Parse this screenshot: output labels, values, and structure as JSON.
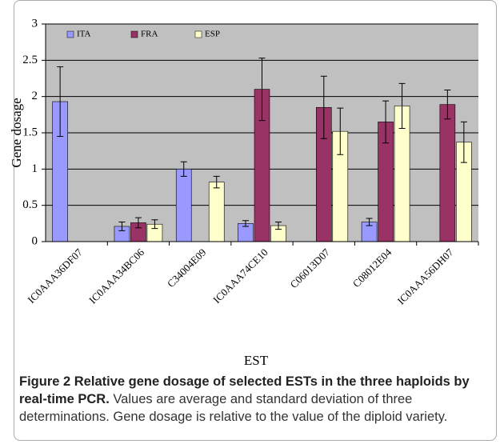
{
  "chart_data": {
    "type": "bar",
    "y_label": "Gene dosage",
    "x_label": "EST",
    "categories": [
      "IC0AAA36DF07",
      "IC0AAA34BC06",
      "C34004E09",
      "IC0AAA74CE10",
      "C06013D07",
      "C08012E04",
      "IC0AAA56DH07"
    ],
    "series": [
      {
        "name": "ITA",
        "color": "#9999ff",
        "values": [
          1.93,
          0.21,
          1.0,
          0.25,
          null,
          0.27,
          null
        ],
        "errors": [
          0.48,
          0.06,
          0.1,
          0.04,
          null,
          0.05,
          null
        ]
      },
      {
        "name": "FRA",
        "color": "#993366",
        "values": [
          null,
          0.26,
          null,
          2.1,
          1.85,
          1.65,
          1.89
        ],
        "errors": [
          null,
          0.07,
          null,
          0.43,
          0.43,
          0.29,
          0.2
        ]
      },
      {
        "name": "ESP",
        "color": "#ffffcc",
        "values": [
          null,
          0.24,
          0.82,
          0.22,
          1.52,
          1.87,
          1.37
        ],
        "errors": [
          null,
          0.06,
          0.08,
          0.05,
          0.32,
          0.31,
          0.28
        ]
      }
    ],
    "ylim": [
      0,
      3
    ],
    "yticks": [
      0,
      0.5,
      1,
      1.5,
      2,
      2.5,
      3
    ],
    "grid": true,
    "legend": "top"
  },
  "caption": {
    "title": "Figure 2 Relative gene dosage of selected ESTs in the three haploids by real-time PCR.",
    "text": "Values are average and standard deviation of three determinations. Gene dosage is relative to the value of the diploid variety."
  }
}
